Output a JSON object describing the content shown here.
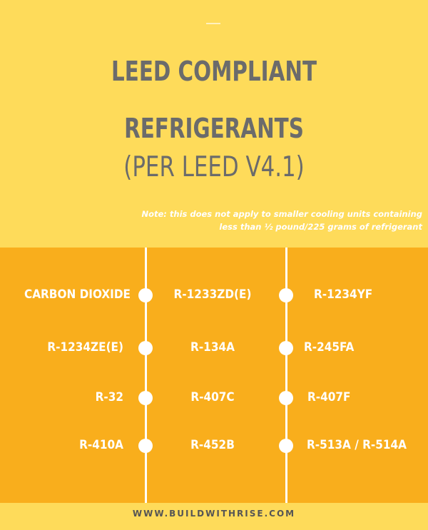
{
  "title": {
    "line1": "LEED COMPLIANT",
    "line2": "REFRIGERANTS",
    "line3": "(PER LEED V4.1)"
  },
  "note": {
    "line1": "Note: this does not apply to smaller cooling units containing",
    "line2": "less than ½ pound/225 grams of refrigerant"
  },
  "refrigerants": {
    "col1": [
      "CARBON DIOXIDE",
      "R-1234ZE(E)",
      "R-32",
      "R-410A"
    ],
    "col2": [
      "R-1233ZD(E)",
      "R-134A",
      "R-407C",
      "R-452B"
    ],
    "col3": [
      "R-1234YF",
      "R-245FA",
      "R-407F",
      "R-513A / R-514A"
    ]
  },
  "footer": {
    "url": "WWW.BUILDWITHRISE.COM"
  },
  "colors": {
    "top_background": "#FEDB5A",
    "grid_background": "#F9AE1C",
    "title_text": "#6B6B6B",
    "grid_text": "#FFFFFF"
  }
}
